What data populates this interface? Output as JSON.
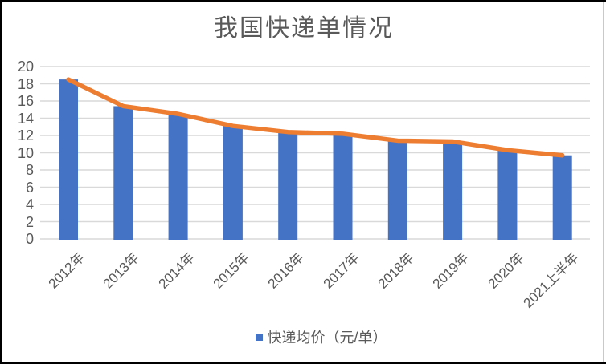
{
  "frame": {
    "background": "#FFFFFF",
    "border_color": "#000000",
    "right_edge_color": "#C9C9C9"
  },
  "chart_data": {
    "type": "bar",
    "title": "我国快递单情况",
    "categories": [
      "2012年",
      "2013年",
      "2014年",
      "2015年",
      "2016年",
      "2017年",
      "2018年",
      "2019年",
      "2020年",
      "2021上半年"
    ],
    "series": [
      {
        "name": "快递均价（元/单）",
        "render": "bar",
        "color": "#4472C4",
        "values": [
          18.5,
          15.4,
          14.5,
          13.1,
          12.4,
          12.2,
          11.4,
          11.3,
          10.3,
          9.7
        ],
        "show_in_legend": true
      },
      {
        "name": "快递均价（元/单）",
        "render": "line",
        "color": "#ED7D31",
        "values": [
          18.5,
          15.4,
          14.5,
          13.1,
          12.4,
          12.2,
          11.4,
          11.3,
          10.3,
          9.7
        ],
        "show_in_legend": false
      }
    ],
    "xlabel": "",
    "ylabel": "",
    "ylim": [
      0,
      20
    ],
    "ytick_step": 2,
    "grid": true,
    "legend_position": "bottom",
    "colors": {
      "gridline": "#D9D9D9",
      "axis_text": "#595959",
      "title_text": "#595959"
    }
  }
}
